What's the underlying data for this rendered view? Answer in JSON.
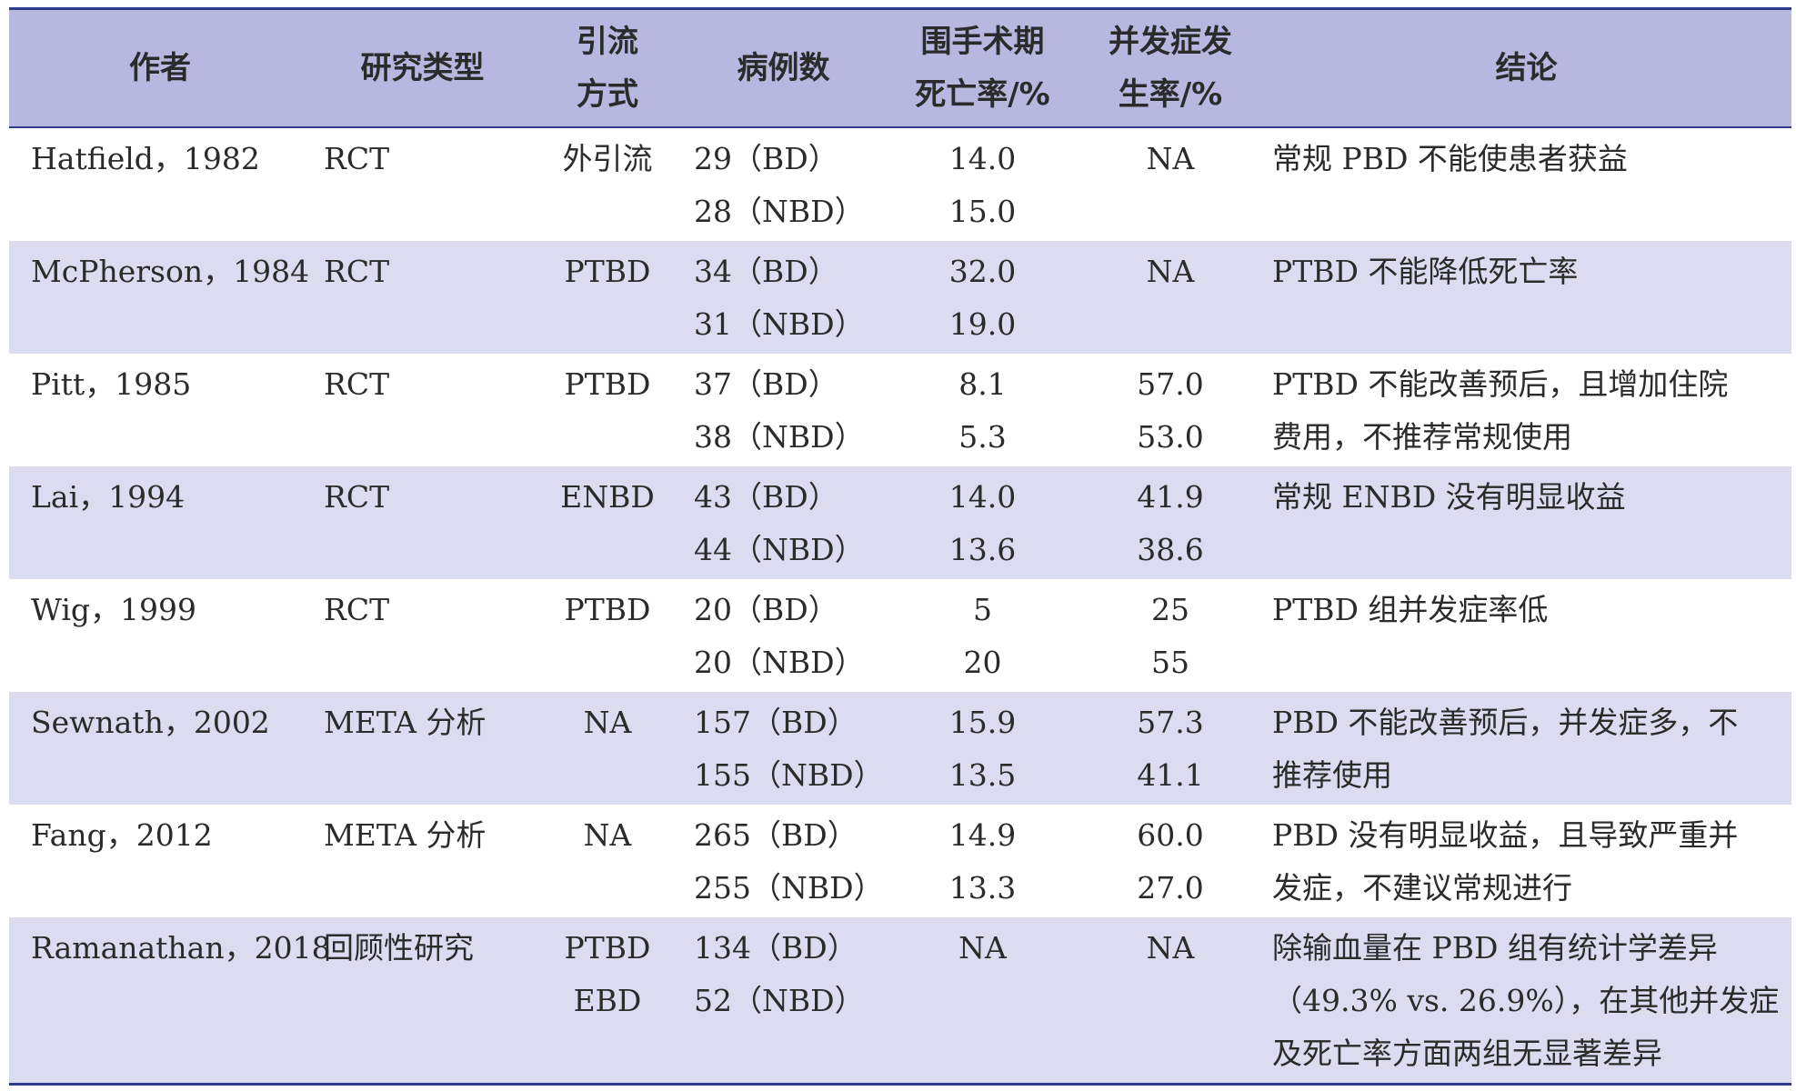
{
  "table": {
    "headers": {
      "author": "作者",
      "study_type": "研究类型",
      "drainage": [
        "引流",
        "方式"
      ],
      "cases": "病例数",
      "mortality": [
        "围手术期",
        "死亡率/%"
      ],
      "complications": [
        "并发症发",
        "生率/%"
      ],
      "conclusion": "结论"
    },
    "rows": [
      {
        "author": "Hatfield，1982",
        "study_type": "RCT",
        "drainage": [
          "外引流"
        ],
        "cases": [
          "29（BD）",
          "28（NBD）"
        ],
        "mortality": [
          "14.0",
          "15.0"
        ],
        "complications": [
          "NA"
        ],
        "conclusion": [
          "常规 PBD 不能使患者获益"
        ]
      },
      {
        "author": "McPherson，1984",
        "study_type": "RCT",
        "drainage": [
          "PTBD"
        ],
        "cases": [
          "34（BD）",
          "31（NBD）"
        ],
        "mortality": [
          "32.0",
          "19.0"
        ],
        "complications": [
          "NA"
        ],
        "conclusion": [
          "PTBD 不能降低死亡率"
        ]
      },
      {
        "author": "Pitt，1985",
        "study_type": "RCT",
        "drainage": [
          "PTBD"
        ],
        "cases": [
          "37（BD）",
          "38（NBD）"
        ],
        "mortality": [
          "8.1",
          "5.3"
        ],
        "complications": [
          "57.0",
          "53.0"
        ],
        "conclusion": [
          "PTBD 不能改善预后，且增加住院",
          "费用，不推荐常规使用"
        ]
      },
      {
        "author": "Lai，1994",
        "study_type": "RCT",
        "drainage": [
          "ENBD"
        ],
        "cases": [
          "43（BD）",
          "44（NBD）"
        ],
        "mortality": [
          "14.0",
          "13.6"
        ],
        "complications": [
          "41.9",
          "38.6"
        ],
        "conclusion": [
          "常规 ENBD 没有明显收益"
        ]
      },
      {
        "author": "Wig，1999",
        "study_type": "RCT",
        "drainage": [
          "PTBD"
        ],
        "cases": [
          "20（BD）",
          "20（NBD）"
        ],
        "mortality": [
          "5",
          "20"
        ],
        "complications": [
          "25",
          "55"
        ],
        "conclusion": [
          "PTBD 组并发症率低"
        ]
      },
      {
        "author": "Sewnath，2002",
        "study_type": "META 分析",
        "drainage": [
          "NA"
        ],
        "cases": [
          "157（BD）",
          "155（NBD）"
        ],
        "mortality": [
          "15.9",
          "13.5"
        ],
        "complications": [
          "57.3",
          "41.1"
        ],
        "conclusion": [
          "PBD 不能改善预后，并发症多，不",
          "推荐使用"
        ]
      },
      {
        "author": "Fang，2012",
        "study_type": "META 分析",
        "drainage": [
          "NA"
        ],
        "cases": [
          "265（BD）",
          "255（NBD）"
        ],
        "mortality": [
          "14.9",
          "13.3"
        ],
        "complications": [
          "60.0",
          "27.0"
        ],
        "conclusion": [
          "PBD 没有明显收益，且导致严重并",
          "发症，不建议常规进行"
        ]
      },
      {
        "author": "Ramanathan，2018",
        "study_type": "回顾性研究",
        "drainage": [
          "PTBD",
          "EBD"
        ],
        "cases": [
          "134（BD）",
          "52（NBD）"
        ],
        "mortality": [
          "NA"
        ],
        "complications": [
          "NA"
        ],
        "conclusion": [
          "除输血量在 PBD 组有统计学差异",
          "（49.3% vs. 26.9%），在其他并发症",
          "及死亡率方面两组无显著差异"
        ]
      }
    ]
  },
  "colors": {
    "header_bg": "#b7b7e0",
    "shaded_row_bg": "#dcdcf0",
    "rule": "#2e3b8e"
  }
}
